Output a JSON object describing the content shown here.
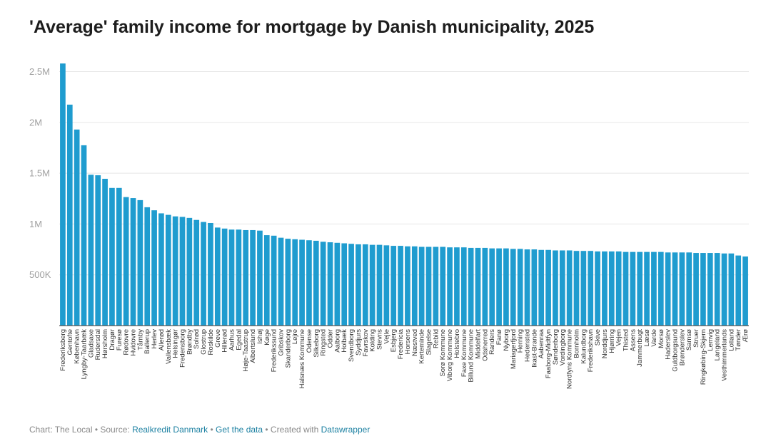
{
  "footer": {
    "chart_by": "Chart: The Local",
    "sep1": " • ",
    "source_prefix": "Source: ",
    "source": "Realkredit Danmark",
    "sep2": " • ",
    "get_data": "Get the data",
    "sep3": " • Created with ",
    "tool": "Datawrapper"
  },
  "colors": {
    "bar": "#1f9ccf",
    "grid": "#e6e6e6",
    "axis": "#333333",
    "link": "#1d81a2"
  },
  "chart_data": {
    "type": "bar",
    "title": "'Average' family income for mortgage by Danish municipality, 2025",
    "xlabel": "",
    "ylabel": "",
    "ylim": [
      0,
      2700000
    ],
    "yticks": [
      500000,
      1000000,
      1500000,
      2000000,
      2500000
    ],
    "ytick_labels": [
      "500K",
      "1M",
      "1.5M",
      "2M",
      "2.5M"
    ],
    "grid": true,
    "categories": [
      "Frederiksberg",
      "Gentofte",
      "København",
      "Lyngby-Taarbæk",
      "Gladsaxe",
      "Rudersdal",
      "Hørsholm",
      "Dragør",
      "Furesø",
      "Rødovre",
      "Hvidovre",
      "Tårnby",
      "Ballerup",
      "Herlev",
      "Allerød",
      "Vallensbæk",
      "Helsingør",
      "Fredensborg",
      "Brøndby",
      "Solrød",
      "Glostrup",
      "Roskilde",
      "Greve",
      "Hillerød",
      "Aarhus",
      "Egedal",
      "Høje-Taastrup",
      "Albertslund",
      "Ishøj",
      "Køge",
      "Frederikssund",
      "Gribskov",
      "Skanderborg",
      "Lejre",
      "Halsnæs Kommune",
      "Odense",
      "Silkeborg",
      "Ringsted",
      "Odder",
      "Aalborg",
      "Holbæk",
      "Svendborg",
      "Syddjurs",
      "Favrskov",
      "Kolding",
      "Stevns",
      "Vejle",
      "Esbjerg",
      "Fredericia",
      "Horsens",
      "Næstved",
      "Kerteminde",
      "Slagelse",
      "Rebild",
      "Sorø Kommune",
      "Viborg Kommune",
      "Holstebro",
      "Faxe Kommune",
      "Billund Kommune",
      "Middelfart",
      "Odsherred",
      "Randers",
      "Fanø",
      "Nyborg",
      "Mariagerfjord",
      "Herning",
      "Hedensted",
      "Ikast-Brande",
      "Aabenraa",
      "Faaborg-Midtfyn",
      "Sønderborg",
      "Vordingborg",
      "Nordfyns Kommune",
      "Bornholm",
      "Kalundborg",
      "Frederikshavn",
      "Skive",
      "Norddjurs",
      "Hjørring",
      "Vejen",
      "Thisted",
      "Assens",
      "Jammerbugt",
      "Læsø",
      "Varde",
      "Morsø",
      "Haderslev",
      "Guldborgsund",
      "Brønderslev",
      "Samsø",
      "Struer",
      "Ringkøbing-Skjern",
      "Lemvig",
      "Langeland",
      "Vesthimmerlands",
      "Lolland",
      "Tønder",
      "Ærø"
    ],
    "values": [
      2580000,
      2175000,
      1930000,
      1775000,
      1485000,
      1480000,
      1445000,
      1355000,
      1355000,
      1265000,
      1255000,
      1235000,
      1165000,
      1135000,
      1105000,
      1090000,
      1075000,
      1070000,
      1060000,
      1040000,
      1020000,
      1010000,
      965000,
      955000,
      945000,
      945000,
      940000,
      940000,
      935000,
      890000,
      885000,
      865000,
      855000,
      850000,
      845000,
      840000,
      835000,
      825000,
      820000,
      815000,
      810000,
      805000,
      800000,
      800000,
      795000,
      795000,
      790000,
      785000,
      785000,
      780000,
      780000,
      775000,
      775000,
      775000,
      775000,
      770000,
      770000,
      770000,
      765000,
      765000,
      765000,
      760000,
      760000,
      760000,
      755000,
      755000,
      750000,
      750000,
      745000,
      745000,
      740000,
      740000,
      740000,
      735000,
      735000,
      735000,
      730000,
      730000,
      730000,
      730000,
      725000,
      725000,
      725000,
      725000,
      725000,
      725000,
      720000,
      720000,
      720000,
      720000,
      715000,
      715000,
      715000,
      715000,
      710000,
      710000,
      690000,
      680000
    ]
  }
}
